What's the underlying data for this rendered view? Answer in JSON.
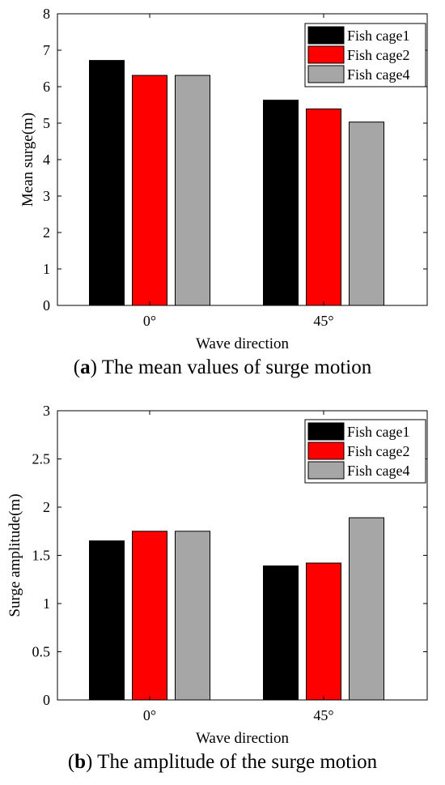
{
  "chart_data": [
    {
      "type": "bar",
      "categories": [
        "0°",
        "45°"
      ],
      "series": [
        {
          "name": "Fish cage1",
          "color": "#000000",
          "values": [
            6.72,
            5.63
          ]
        },
        {
          "name": "Fish cage2",
          "color": "#ff0000",
          "values": [
            6.31,
            5.39
          ]
        },
        {
          "name": "Fish cage4",
          "color": "#a6a6a6",
          "values": [
            6.31,
            5.03
          ]
        }
      ],
      "xlabel": "Wave direction",
      "ylabel": "Mean surge(m)",
      "ylim": [
        0,
        8
      ],
      "yticks": [
        "0",
        "1",
        "2",
        "3",
        "4",
        "5",
        "6",
        "7",
        "8"
      ],
      "legend_position": "top-right",
      "grid": false,
      "caption_label": "a",
      "caption_text": "The mean values of surge motion"
    },
    {
      "type": "bar",
      "categories": [
        "0°",
        "45°"
      ],
      "series": [
        {
          "name": "Fish cage1",
          "color": "#000000",
          "values": [
            1.65,
            1.39
          ]
        },
        {
          "name": "Fish cage2",
          "color": "#ff0000",
          "values": [
            1.75,
            1.42
          ]
        },
        {
          "name": "Fish cage4",
          "color": "#a6a6a6",
          "values": [
            1.75,
            1.89
          ]
        }
      ],
      "xlabel": "Wave direction",
      "ylabel": "Surge amplitude(m)",
      "ylim": [
        0,
        3
      ],
      "yticks": [
        "0",
        "0.5",
        "1",
        "1.5",
        "2",
        "2.5",
        "3"
      ],
      "legend_position": "top-right",
      "grid": false,
      "caption_label": "b",
      "caption_text": "The amplitude of the surge motion"
    }
  ]
}
